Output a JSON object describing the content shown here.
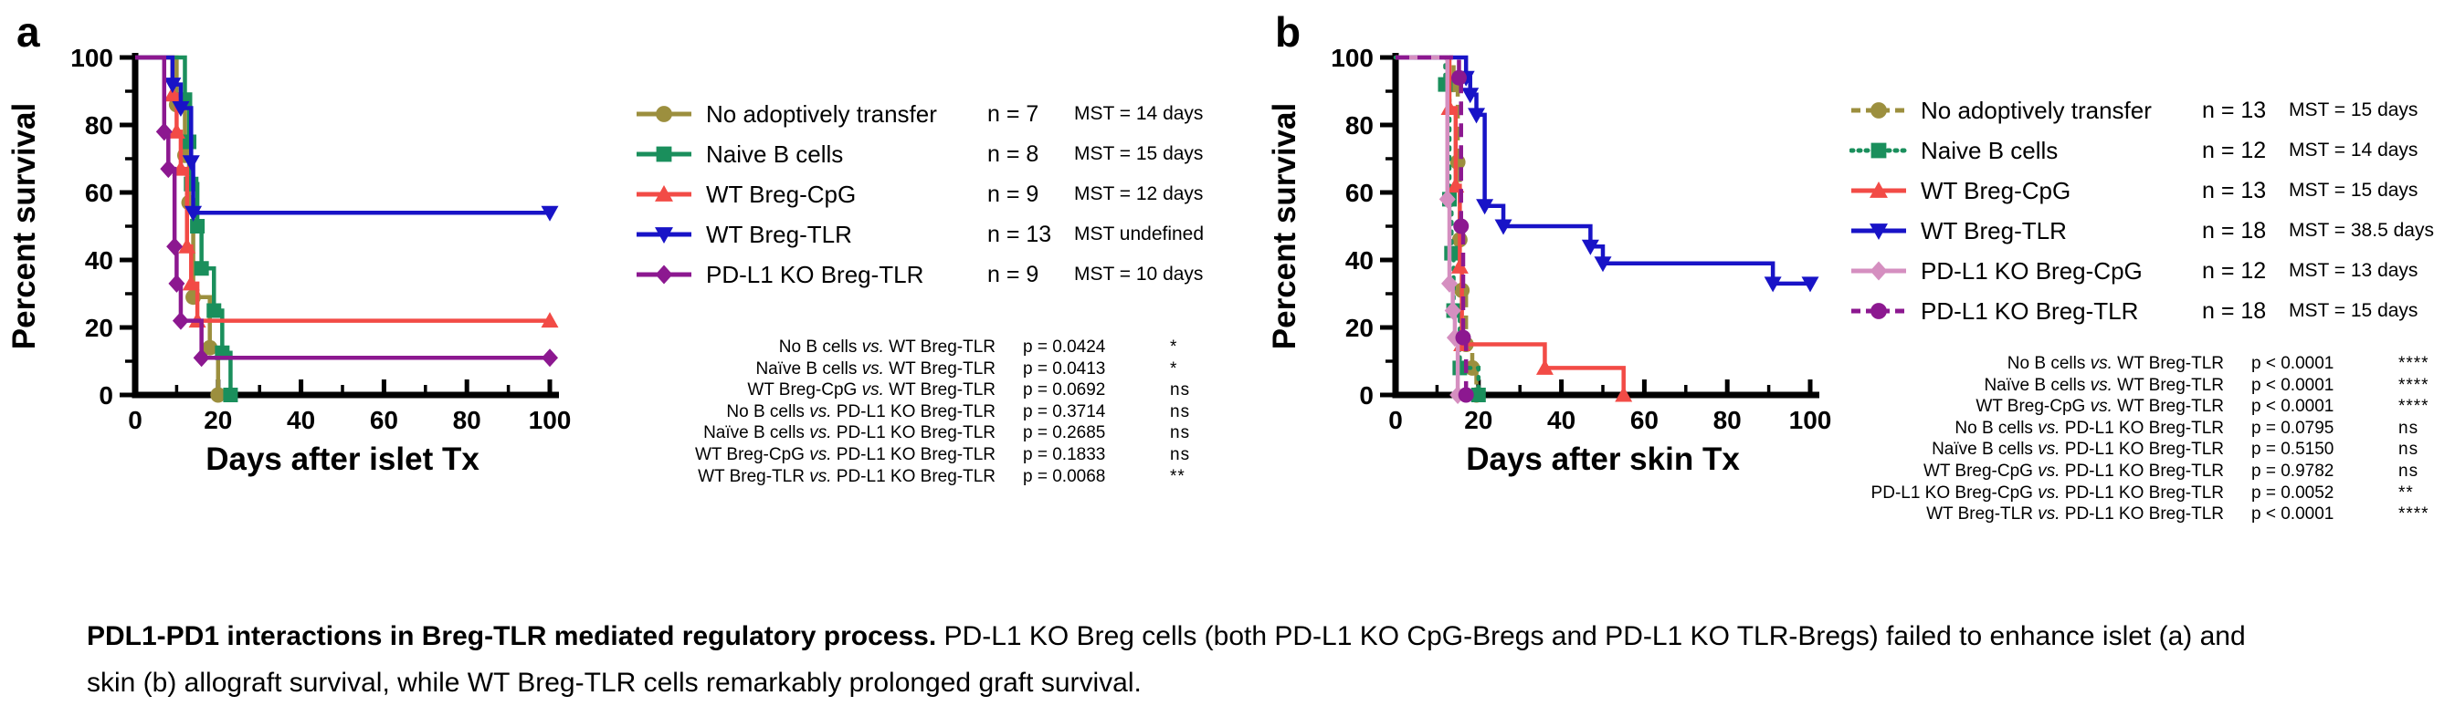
{
  "caption": {
    "bold": "PDL1-PD1 interactions in Breg-TLR mediated regulatory process.",
    "rest": " PD-L1 KO Breg cells (both PD-L1 KO CpG-Bregs and PD-L1 KO TLR-Bregs) failed to enhance islet (a) and skin (b) allograft survival, while WT Breg-TLR cells remarkably prolonged graft survival."
  },
  "chart_data": [
    {
      "type": "line",
      "panel_label": "a",
      "xlabel": "Days after islet Tx",
      "ylabel": "Percent survival",
      "xlim": [
        0,
        100
      ],
      "ylim": [
        0,
        100
      ],
      "x_ticks": [
        0,
        20,
        40,
        60,
        80,
        100
      ],
      "y_ticks": [
        0,
        20,
        40,
        60,
        80,
        100
      ],
      "x_minor": [
        10,
        30,
        50,
        70,
        90
      ],
      "y_minor": [
        10,
        30,
        50,
        70,
        90
      ],
      "grid": false,
      "legend_position": "right",
      "series": [
        {
          "name": "No adoptively transfer",
          "n_label": "n = 7",
          "mst_label": "MST = 14 days",
          "color": "#9C8F3E",
          "marker": "circle",
          "line_style": "solid",
          "steps": [
            [
              10,
              86
            ],
            [
              12,
              71
            ],
            [
              13,
              57
            ],
            [
              14,
              29
            ],
            [
              18,
              14
            ],
            [
              20,
              0
            ]
          ]
        },
        {
          "name": "Naive B cells",
          "n_label": "n = 8",
          "mst_label": "MST = 15 days",
          "color": "#1A8F5C",
          "marker": "square",
          "line_style": "solid",
          "steps": [
            [
              12,
              87.5
            ],
            [
              13,
              75
            ],
            [
              13.5,
              62.5
            ],
            [
              15,
              50
            ],
            [
              16,
              37.5
            ],
            [
              19,
              25
            ],
            [
              21,
              12.5
            ],
            [
              23,
              0
            ]
          ]
        },
        {
          "name": "WT Breg-CpG",
          "n_label": "n = 9",
          "mst_label": "MST = 12 days",
          "color": "#F24B46",
          "marker": "triangle-up",
          "line_style": "solid",
          "steps": [
            [
              9,
              89
            ],
            [
              10,
              78
            ],
            [
              11,
              67
            ],
            [
              12.5,
              44
            ],
            [
              13.5,
              33
            ],
            [
              15,
              22
            ]
          ]
        },
        {
          "name": "WT Breg-TLR",
          "n_label": "n = 13",
          "mst_label": "MST undefined",
          "color": "#1813C7",
          "marker": "triangle-down",
          "line_style": "solid",
          "steps": [
            [
              9,
              92
            ],
            [
              11,
              85
            ],
            [
              13.5,
              69
            ],
            [
              14,
              54
            ]
          ]
        },
        {
          "name": "PD-L1 KO Breg-TLR",
          "n_label": "n = 9",
          "mst_label": "MST = 10 days",
          "color": "#8C1890",
          "marker": "diamond",
          "line_style": "solid",
          "steps": [
            [
              7,
              78
            ],
            [
              8,
              67
            ],
            [
              9.5,
              44
            ],
            [
              10,
              33
            ],
            [
              11,
              22
            ],
            [
              16,
              11
            ]
          ]
        }
      ],
      "stats": [
        {
          "left": "No B cells",
          "vs": "vs.",
          "right": "WT Breg-TLR",
          "p": "p = 0.0424",
          "sig": "*"
        },
        {
          "left": "Naïve B cells",
          "vs": "vs.",
          "right": "WT Breg-TLR",
          "p": "p = 0.0413",
          "sig": "*"
        },
        {
          "left": "WT Breg-CpG",
          "vs": "vs.",
          "right": "WT Breg-TLR",
          "p": "p = 0.0692",
          "sig": "ns"
        },
        {
          "left": "No B cells",
          "vs": "vs.",
          "right": "PD-L1 KO Breg-TLR",
          "p": "p = 0.3714",
          "sig": "ns"
        },
        {
          "left": "Naïve B cells",
          "vs": "vs.",
          "right": "PD-L1 KO Breg-TLR",
          "p": "p = 0.2685",
          "sig": "ns"
        },
        {
          "left": "WT Breg-CpG",
          "vs": "vs.",
          "right": "PD-L1 KO Breg-TLR",
          "p": "p = 0.1833",
          "sig": "ns"
        },
        {
          "left": "WT Breg-TLR",
          "vs": "vs.",
          "right": "PD-L1 KO Breg-TLR",
          "p": "p = 0.0068",
          "sig": "**"
        }
      ]
    },
    {
      "type": "line",
      "panel_label": "b",
      "xlabel": "Days after skin Tx",
      "ylabel": "Percent survival",
      "xlim": [
        0,
        100
      ],
      "ylim": [
        0,
        100
      ],
      "x_ticks": [
        0,
        20,
        40,
        60,
        80,
        100
      ],
      "y_ticks": [
        0,
        20,
        40,
        60,
        80,
        100
      ],
      "x_minor": [
        10,
        30,
        50,
        70,
        90
      ],
      "y_minor": [
        10,
        30,
        50,
        70,
        90
      ],
      "grid": false,
      "legend_position": "right",
      "series": [
        {
          "name": "No adoptively transfer",
          "n_label": "n = 13",
          "mst_label": "MST = 15 days",
          "color": "#9C8F3E",
          "marker": "circle",
          "line_style": "dashed",
          "steps": [
            [
              14,
              92
            ],
            [
              15,
              69
            ],
            [
              15.5,
              46
            ],
            [
              16,
              31
            ],
            [
              17,
              15
            ],
            [
              18.5,
              8
            ],
            [
              19.5,
              0
            ]
          ]
        },
        {
          "name": "Naive B cells",
          "n_label": "n = 12",
          "mst_label": "MST = 14 days",
          "color": "#1A8F5C",
          "marker": "square",
          "line_style": "dotted",
          "steps": [
            [
              12,
              92
            ],
            [
              13,
              58
            ],
            [
              13.5,
              42
            ],
            [
              14,
              25
            ],
            [
              15.5,
              8
            ],
            [
              20,
              0
            ]
          ]
        },
        {
          "name": "WT Breg-CpG",
          "n_label": "n = 13",
          "mst_label": "MST = 15 days",
          "color": "#F24B46",
          "marker": "triangle-up",
          "line_style": "solid",
          "steps": [
            [
              13,
              85
            ],
            [
              14.5,
              62
            ],
            [
              15.5,
              38
            ],
            [
              16,
              15
            ],
            [
              36,
              8
            ],
            [
              55,
              0
            ]
          ]
        },
        {
          "name": "WT Breg-TLR",
          "n_label": "n = 18",
          "mst_label": "MST = 38.5 days",
          "color": "#1813C7",
          "marker": "triangle-down",
          "line_style": "solid",
          "steps": [
            [
              17,
              94
            ],
            [
              18,
              89
            ],
            [
              19.5,
              83
            ],
            [
              21.5,
              56
            ],
            [
              26,
              50
            ],
            [
              47,
              44
            ],
            [
              50,
              39
            ],
            [
              91,
              33
            ]
          ]
        },
        {
          "name": "PD-L1 KO Breg-CpG",
          "n_label": "n = 12",
          "mst_label": "MST = 13 days",
          "color": "#D58FC0",
          "marker": "diamond",
          "line_style": "solid",
          "steps": [
            [
              12.5,
              58
            ],
            [
              13,
              33
            ],
            [
              13.8,
              25
            ],
            [
              14.3,
              17
            ],
            [
              15,
              0
            ]
          ]
        },
        {
          "name": "PD-L1 KO Breg-TLR",
          "n_label": "n = 18",
          "mst_label": "MST = 15 days",
          "color": "#8C1890",
          "marker": "circle",
          "line_style": "dashed",
          "steps": [
            [
              15.3,
              94
            ],
            [
              15.8,
              50
            ],
            [
              16.3,
              17
            ],
            [
              17,
              0
            ]
          ]
        }
      ],
      "stats": [
        {
          "left": "No B cells",
          "vs": "vs.",
          "right": "WT Breg-TLR",
          "p": "p < 0.0001",
          "sig": "****"
        },
        {
          "left": "Naïve B cells",
          "vs": "vs.",
          "right": "WT Breg-TLR",
          "p": "p < 0.0001",
          "sig": "****"
        },
        {
          "left": "WT Breg-CpG",
          "vs": "vs.",
          "right": "WT Breg-TLR",
          "p": "p < 0.0001",
          "sig": "****"
        },
        {
          "left": "No B cells",
          "vs": "vs.",
          "right": "PD-L1 KO Breg-TLR",
          "p": "p = 0.0795",
          "sig": "ns"
        },
        {
          "left": "Naïve B cells",
          "vs": "vs.",
          "right": "PD-L1 KO Breg-TLR",
          "p": "p = 0.5150",
          "sig": "ns"
        },
        {
          "left": "WT Breg-CpG",
          "vs": "vs.",
          "right": "PD-L1 KO Breg-TLR",
          "p": "p = 0.9782",
          "sig": "ns"
        },
        {
          "left": "PD-L1 KO Breg-CpG",
          "vs": "vs.",
          "right": "PD-L1 KO Breg-TLR",
          "p": "p = 0.0052",
          "sig": "**"
        },
        {
          "left": "WT Breg-TLR",
          "vs": "vs.",
          "right": "PD-L1 KO Breg-TLR",
          "p": "p < 0.0001",
          "sig": "****"
        }
      ]
    }
  ]
}
